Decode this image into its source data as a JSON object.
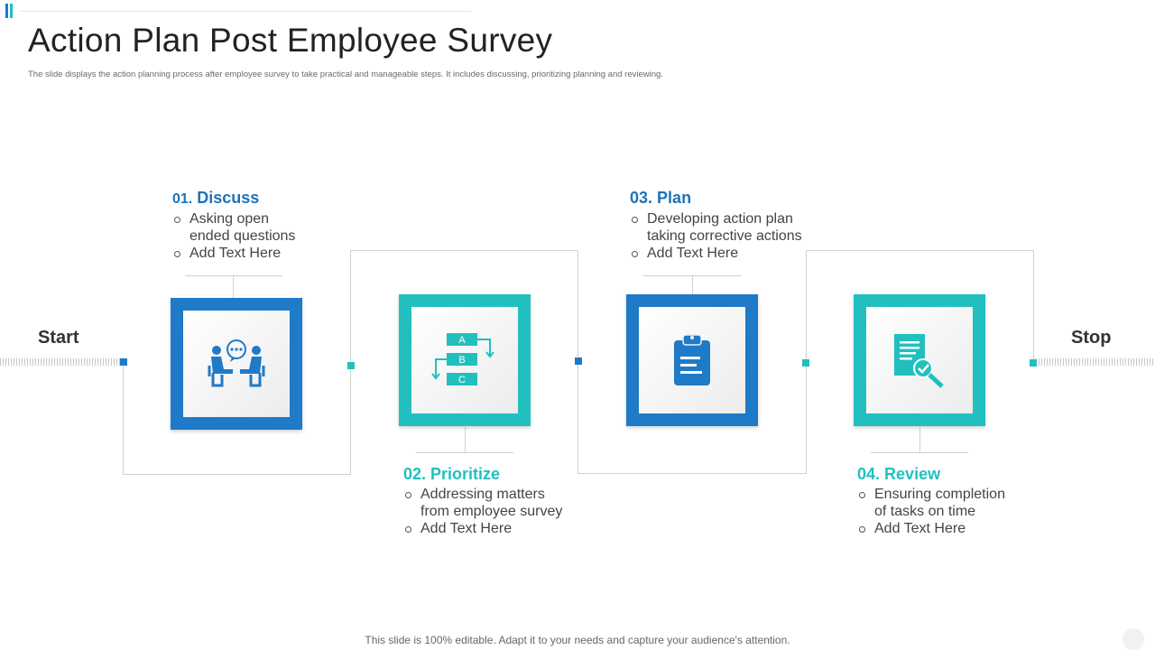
{
  "title": "Action Plan Post Employee Survey",
  "subtitle": "The slide displays the action planning  process after employee survey to take practical and manageable steps. It includes discussing, prioritizing planning and reviewing.",
  "start_label": "Start",
  "stop_label": "Stop",
  "colors": {
    "blue": "#1f7ac7",
    "teal": "#21c0bf",
    "title_blue": "#1e73b8"
  },
  "steps": [
    {
      "num": "01.",
      "name": "Discuss",
      "icon": "meeting-icon",
      "bullets": [
        "Asking open ended questions",
        "Add Text Here"
      ]
    },
    {
      "num": "02.",
      "name": "Prioritize",
      "icon": "flowchart-icon",
      "flow_labels": [
        "A",
        "B",
        "C"
      ],
      "bullets": [
        "Addressing matters from employee survey",
        "Add Text Here"
      ]
    },
    {
      "num": "03.",
      "name": "Plan",
      "icon": "clipboard-icon",
      "bullets": [
        "Developing action plan taking corrective actions",
        "Add Text Here"
      ]
    },
    {
      "num": "04.",
      "name": "Review",
      "icon": "document-search-icon",
      "bullets": [
        "Ensuring completion of tasks on time",
        "Add Text Here"
      ]
    }
  ],
  "footer": "This slide is 100% editable. Adapt it to your needs and capture your audience's attention."
}
